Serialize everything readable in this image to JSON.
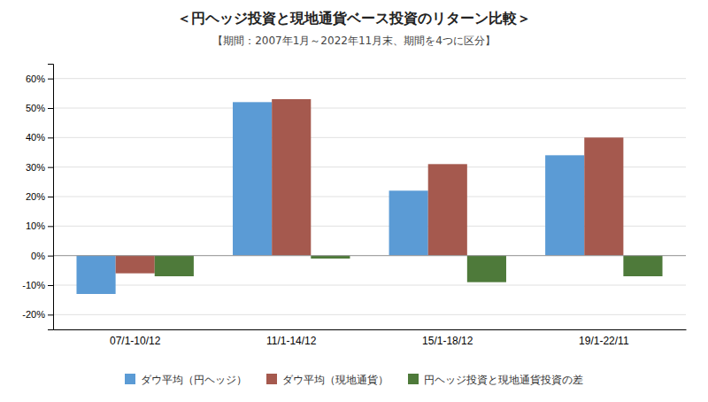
{
  "chart_data": {
    "type": "bar",
    "title": "＜円ヘッジ投資と現地通貨ベース投資のリターン比較＞",
    "subtitle": "【期間：2007年1月～2022年11月末、期間を4つに区分】",
    "categories": [
      "07/1-10/12",
      "11/1-14/12",
      "15/1-18/12",
      "19/1-22/11"
    ],
    "series": [
      {
        "name": "ダウ平均（円ヘッジ）",
        "color": "#5B9BD5",
        "values": [
          -0.13,
          0.52,
          0.22,
          0.34
        ]
      },
      {
        "name": "ダウ平均（現地通貨）",
        "color": "#A5594E",
        "values": [
          -0.06,
          0.53,
          0.31,
          0.4
        ]
      },
      {
        "name": "円ヘッジ投資と現地通貨投資の差",
        "color": "#4E7A3A",
        "values": [
          -0.07,
          -0.01,
          -0.09,
          -0.07
        ]
      }
    ],
    "ylim": [
      -0.25,
      0.65
    ],
    "yticks": [
      {
        "value": -0.2,
        "label": "-20%"
      },
      {
        "value": -0.1,
        "label": "-10%"
      },
      {
        "value": 0.0,
        "label": "0%"
      },
      {
        "value": 0.1,
        "label": "10%"
      },
      {
        "value": 0.2,
        "label": "20%"
      },
      {
        "value": 0.3,
        "label": "30%"
      },
      {
        "value": 0.4,
        "label": "40%"
      },
      {
        "value": 0.5,
        "label": "50%"
      },
      {
        "value": 0.6,
        "label": "60%"
      }
    ],
    "grid": true,
    "legend": "bottom"
  }
}
